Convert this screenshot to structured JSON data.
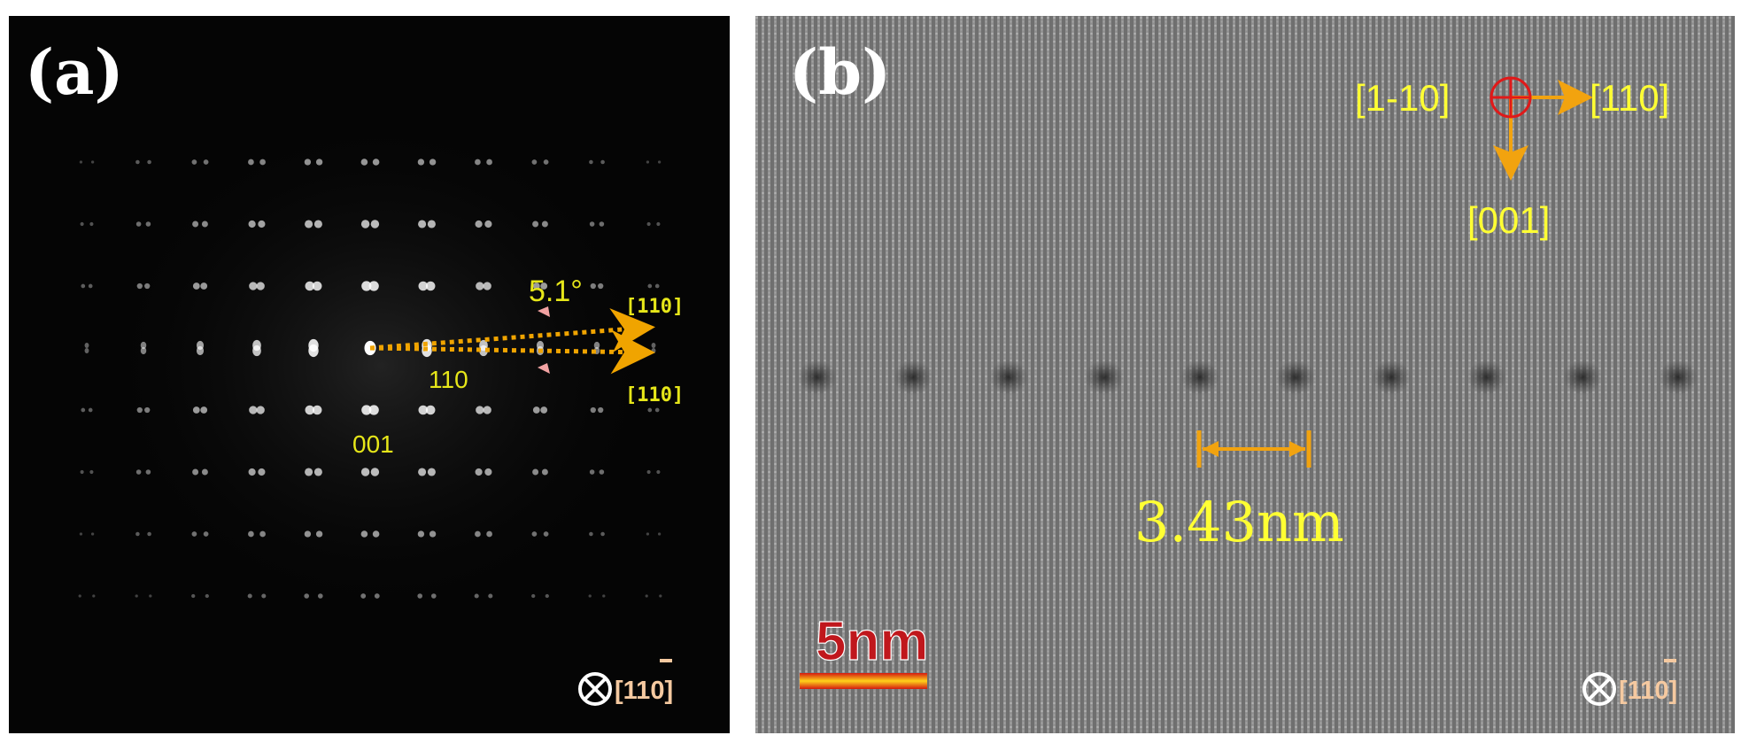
{
  "panel_a": {
    "label": "(a)",
    "angle": "5.1°",
    "spot_110": "110",
    "spot_001": "001",
    "dir_upper": "[110]",
    "dir_lower": "[110]",
    "zone_axis": "[110]",
    "colors": {
      "annot": "#e6e619",
      "arrow": "#f0a400",
      "marker": "#f2a2a2",
      "zone": "#f5c9a0"
    },
    "icons": {
      "zone_symbol": "circle-x-icon",
      "angle_marker": "triangle-marker-icon"
    }
  },
  "panel_b": {
    "label": "(b)",
    "axis_left": "[1-10]",
    "axis_right": "[110]",
    "axis_down": "[001]",
    "spacing": "3.43nm",
    "scale_bar": "5nm",
    "zone_axis": "[110]",
    "colors": {
      "annot": "#ffff33",
      "arrow": "#f2a30f",
      "origin": "#e01919",
      "scale_text": "#c0171c",
      "scale_bar": "#f5a300"
    },
    "icons": {
      "origin_symbol": "crosshair-circle-icon",
      "zone_symbol": "circle-x-icon"
    }
  }
}
